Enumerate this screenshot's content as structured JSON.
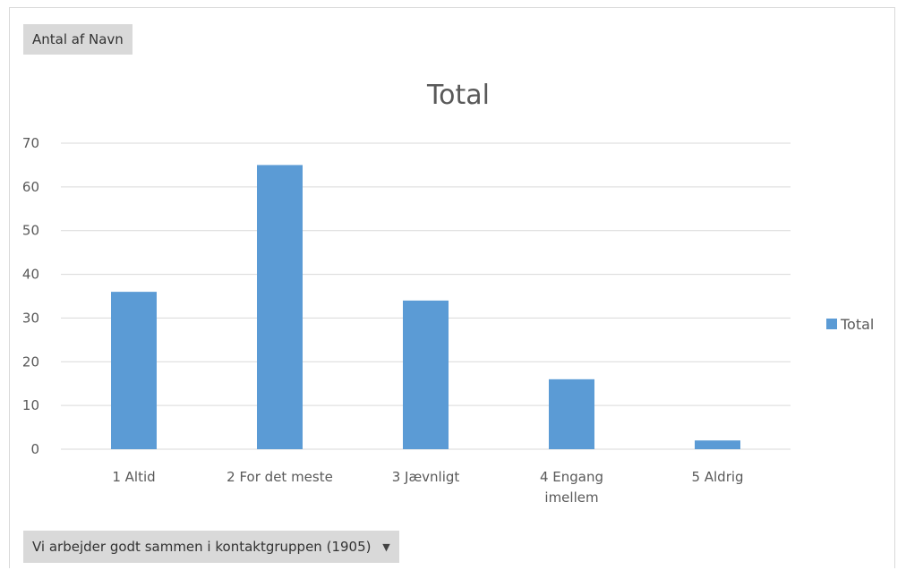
{
  "pivot": {
    "value_field_label": "Antal af Navn",
    "axis_field_label": "Vi arbejder godt sammen i kontaktgruppen (1905)",
    "axis_field_icon": "dropdown-arrow-icon"
  },
  "chart_data": {
    "type": "bar",
    "title": "Total",
    "categories": [
      "1 Altid",
      "2 For det meste",
      "3 Jævnligt",
      "4 Engang imellem",
      "5 Aldrig"
    ],
    "series": [
      {
        "name": "Total",
        "values": [
          36,
          65,
          34,
          16,
          2
        ],
        "color": "#5b9bd5"
      }
    ],
    "ylim": [
      0,
      70
    ],
    "yticks": [
      0,
      10,
      20,
      30,
      40,
      50,
      60,
      70
    ],
    "grid": true,
    "legend": "right",
    "xlabel": "",
    "ylabel": ""
  }
}
